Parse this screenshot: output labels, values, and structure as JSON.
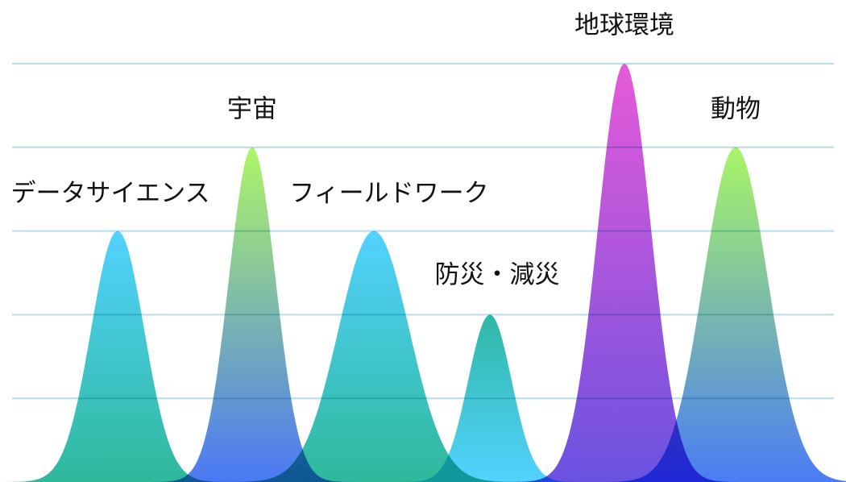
{
  "chart_data": {
    "type": "peak",
    "categories": [
      "データサイエンス",
      "宇宙",
      "フィールドワーク",
      "防災・減災",
      "地球環境",
      "動物"
    ],
    "values": [
      3,
      4,
      3,
      2,
      5,
      4
    ],
    "colors": [
      [
        "#52d2ff",
        "#2fb89a"
      ],
      [
        "#aef566",
        "#4a78f5"
      ],
      [
        "#52d2ff",
        "#2fb89a"
      ],
      [
        "#2fb8a6",
        "#52d2ff"
      ],
      [
        "#e65ad8",
        "#6a52e0"
      ],
      [
        "#a8f566",
        "#4a7cf5"
      ]
    ],
    "ylim": [
      0,
      5
    ],
    "yticks": [
      1,
      2,
      3,
      4,
      5
    ],
    "grid": true
  }
}
